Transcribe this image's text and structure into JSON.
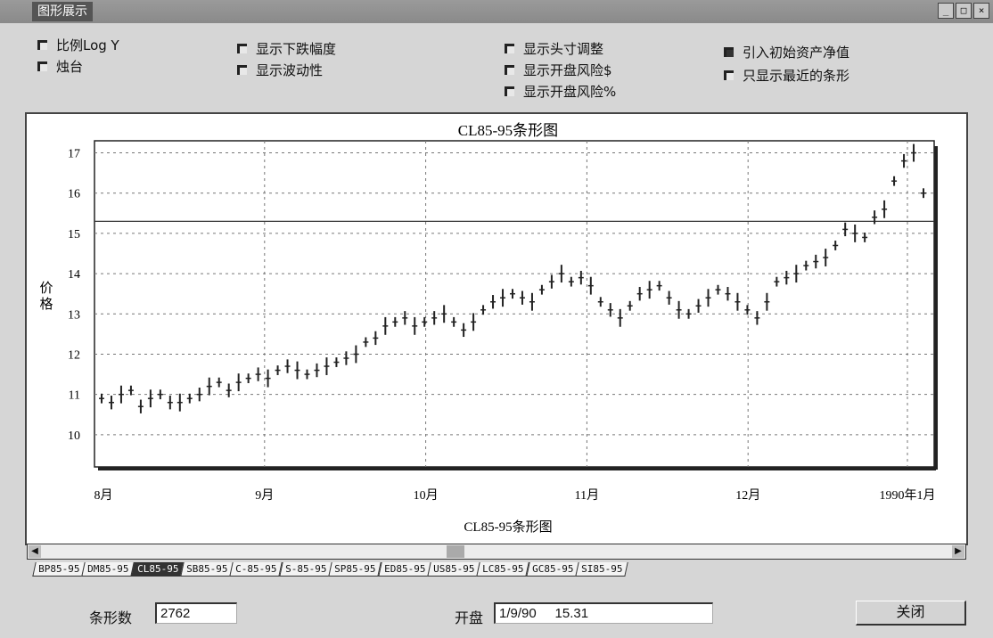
{
  "window": {
    "title": "图形展示",
    "buttons": [
      "_",
      "□",
      "×"
    ]
  },
  "options": {
    "log_y": "比例Log Y",
    "candle": "烛台",
    "show_drawdown": "显示下跌幅度",
    "show_volatility": "显示波动性",
    "show_position_adjust": "显示头寸调整",
    "show_open_risk_dollar": "显示开盘风险$",
    "show_open_risk_pct": "显示开盘风险%",
    "initial_equity": "引入初始资产净值",
    "recent_bars_only": "只显示最近的条形"
  },
  "chart_data": {
    "type": "bar",
    "title": "CL85-95条形图",
    "xlabel": "CL85-95条形图",
    "ylabel": "价格",
    "ylim": [
      9.2,
      17.3
    ],
    "yticks": [
      10,
      11,
      12,
      13,
      14,
      15,
      16,
      17
    ],
    "xticks": [
      "8月",
      "9月",
      "10月",
      "11月",
      "12月",
      "1990年1月"
    ],
    "reference_line": 15.3,
    "grid": true,
    "series": [
      {
        "values": [
          10.9,
          10.8,
          11.0,
          11.1,
          10.7,
          10.9,
          11.0,
          10.8,
          10.8,
          10.9,
          11.0,
          11.2,
          11.3,
          11.1,
          11.3,
          11.4,
          11.5,
          11.4,
          11.6,
          11.7,
          11.6,
          11.5,
          11.6,
          11.7,
          11.8,
          11.9,
          12.0,
          12.3,
          12.4,
          12.7,
          12.8,
          12.9,
          12.7,
          12.8,
          12.9,
          13.0,
          12.8,
          12.6,
          12.8,
          13.1,
          13.3,
          13.4,
          13.5,
          13.4,
          13.3,
          13.6,
          13.8,
          14.0,
          13.8,
          13.9,
          13.7,
          13.3,
          13.1,
          12.9,
          13.2,
          13.5,
          13.6,
          13.7,
          13.4,
          13.1,
          13.0,
          13.2,
          13.4,
          13.6,
          13.5,
          13.3,
          13.1,
          12.9,
          13.3,
          13.8,
          13.9,
          14.0,
          14.2,
          14.3,
          14.4,
          14.7,
          15.1,
          15.0,
          14.9,
          15.4,
          15.6,
          16.3,
          16.8,
          17.0,
          16.0
        ]
      }
    ]
  },
  "tabs": [
    "BP85-95",
    "DM85-95",
    "CL85-95",
    "SB85-95",
    "C-85-95",
    "S-85-95",
    "SP85-95",
    "ED85-95",
    "US85-95",
    "LC85-95",
    "GC85-95",
    "SI85-95"
  ],
  "active_tab": "CL85-95",
  "footer": {
    "bars_label": "条形数",
    "bars_value": "2762",
    "open_label": "开盘",
    "open_value": "1/9/90     15.31",
    "close_label": "关闭"
  }
}
